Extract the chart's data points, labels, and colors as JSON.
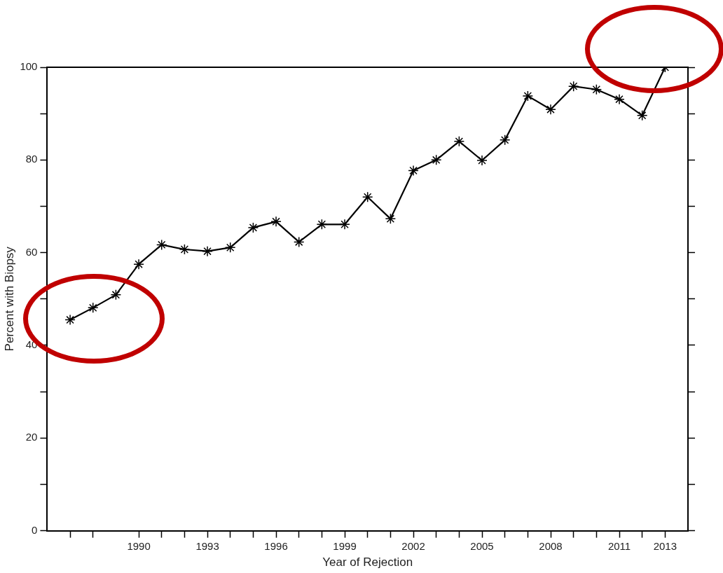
{
  "chart_data": {
    "type": "line",
    "xlabel": "Year of Rejection",
    "ylabel": "Percent with Biopsy",
    "x": [
      1987,
      1988,
      1989,
      1990,
      1991,
      1992,
      1993,
      1994,
      1995,
      1996,
      1997,
      1998,
      1999,
      2000,
      2001,
      2002,
      2003,
      2004,
      2005,
      2006,
      2007,
      2008,
      2009,
      2010,
      2011,
      2012,
      2013
    ],
    "series": [
      {
        "color": "#000000",
        "values": [
          45.5,
          48.1,
          50.9,
          57.5,
          61.7,
          60.7,
          60.3,
          61.1,
          65.4,
          66.7,
          62.3,
          66.1,
          66.1,
          72,
          67.3,
          77.7,
          80,
          84,
          79.9,
          84.3,
          93.8,
          90.9,
          95.9,
          95.2,
          93.1,
          89.6,
          100
        ]
      }
    ],
    "xlim": [
      1986,
      2014
    ],
    "xticks": [
      {
        "value": 1987,
        "label": null
      },
      {
        "value": 1988,
        "label": null
      },
      1990,
      {
        "value": 1991,
        "label": null
      },
      {
        "value": 1992,
        "label": null
      },
      1993,
      {
        "value": 1994,
        "label": null
      },
      {
        "value": 1995,
        "label": null
      },
      1996,
      {
        "value": 1997,
        "label": null
      },
      {
        "value": 1998,
        "label": null
      },
      1999,
      {
        "value": 2000,
        "label": null
      },
      {
        "value": 2001,
        "label": null
      },
      2002,
      {
        "value": 2003,
        "label": null
      },
      {
        "value": 2004,
        "label": null
      },
      2005,
      {
        "value": 2006,
        "label": null
      },
      {
        "value": 2007,
        "label": null
      },
      2008,
      {
        "value": 2009,
        "label": null
      },
      {
        "value": 2010,
        "label": null
      },
      2011,
      {
        "value": 2012,
        "label": null
      },
      2013
    ],
    "ylim": [
      0,
      100
    ],
    "yticks": [
      0,
      {
        "value": 10,
        "label": null
      },
      20,
      {
        "value": 30,
        "label": null
      },
      40,
      {
        "value": 50,
        "label": null
      },
      60,
      {
        "value": 70,
        "label": null
      },
      80,
      {
        "value": 90,
        "label": null
      },
      100
    ],
    "grid": false,
    "legend": false,
    "marker": "cross",
    "line_style": "solid"
  }
}
